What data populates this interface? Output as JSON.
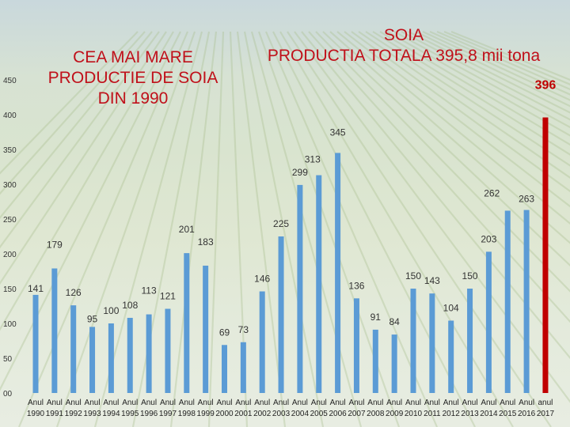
{
  "title_left_lines": [
    "CEA MAI MARE",
    "PRODUCTIE DE SOIA",
    "DIN 1990"
  ],
  "title_right_lines": [
    "SOIA",
    "PRODUCTIA TOTALA 395,8 mii tona"
  ],
  "colors": {
    "bar": "#5b9bd5",
    "highlight": "#c00000",
    "title": "#c0101a",
    "highlight_label": "#c00000"
  },
  "chart_data": {
    "type": "bar",
    "ylim": [
      0,
      450
    ],
    "y_ticks": [
      "00",
      "50",
      "100",
      "150",
      "200",
      "250",
      "300",
      "350",
      "400",
      "450"
    ],
    "grid": false,
    "categories_top": [
      "Anul",
      "Anul",
      "Anul",
      "Anul",
      "Anul",
      "Anul",
      "Anul",
      "Anul",
      "Anul",
      "Anul",
      "Anul",
      "Anul",
      "Anul",
      "Anul",
      "Anul",
      "Anul",
      "Anul",
      "Anul",
      "Anul",
      "Anul",
      "Anul",
      "Anul",
      "Anul",
      "Anul",
      "Anul",
      "Anul",
      "Anul",
      "anul"
    ],
    "categories_bottom": [
      "1990",
      "1991",
      "1992",
      "1993",
      "1994",
      "1995",
      "1996",
      "1997",
      "1998",
      "1999",
      "2000",
      "2001",
      "2002",
      "2003",
      "2004",
      "2005",
      "2006",
      "2007",
      "2008",
      "2009",
      "2010",
      "2011",
      "2012",
      "2013",
      "2014",
      "2015",
      "2016",
      "2017"
    ],
    "values": [
      141,
      179,
      126,
      95,
      100,
      108,
      113,
      121,
      201,
      183,
      69,
      73,
      146,
      225,
      299,
      313,
      345,
      136,
      91,
      84,
      150,
      143,
      104,
      150,
      203,
      262,
      263,
      396
    ],
    "data_labels": [
      "141",
      "179",
      "126",
      "95",
      "100",
      "108",
      "113",
      "121",
      "201",
      "183",
      "69",
      "73",
      "146",
      "225",
      "299",
      "313",
      "345",
      "136",
      "91",
      "84",
      "150",
      "143",
      "104",
      "150",
      "203",
      "262",
      "263",
      "396"
    ],
    "highlight_index": 27
  }
}
